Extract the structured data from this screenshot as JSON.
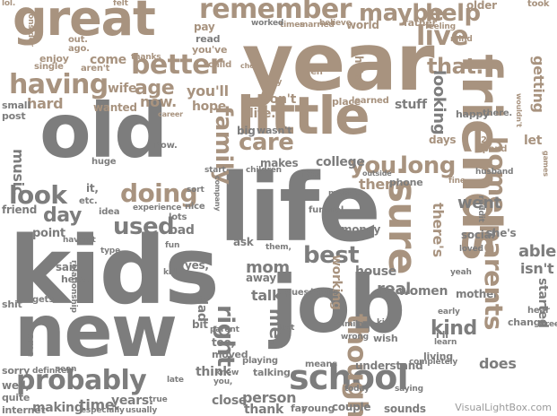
{
  "words": {
    "great": "great",
    "year": "year",
    "old": "old",
    "life": "life",
    "kids": "kids",
    "new": "new",
    "job": "job",
    "little": "little",
    "friends": "friends",
    "remember": "remember",
    "maybe": "maybe",
    "help": "help",
    "live": "live",
    "better": "better",
    "having": "having",
    "age": "age",
    "family": "family",
    "doing": "doing",
    "look": "look",
    "day": "day",
    "used": "used",
    "school": "school",
    "probably": "probably",
    "sure": "sure",
    "best": "best",
    "parents": "parents",
    "right": "right",
    "care": "care",
    "you": "you.",
    "long": "long",
    "music": "music",
    "home": "home",
    "went": "went",
    "that": "that.",
    "getting": "getting",
    "looking": "looking",
    "thought": "thought",
    "kind": "kind",
    "trying": "trying",
    "time": "time.",
    "making": "making",
    "person": "person",
    "thank": "thank",
    "college": "college",
    "think": "think",
    "mom": "mom",
    "me": "me.",
    "working": "working",
    "does": "does",
    "real": "real",
    "women": "women",
    "mother": "mother",
    "sounds": "sounds",
    "understand": "understand",
    "wife": "wife",
    "stuff": "stuff",
    "pay": "pay",
    "read": "read",
    "wont": "won't",
    "hope": "hope",
    "youll": "you'll",
    "youve": "you've",
    "wanted": "wanted",
    "hard": "hard",
    "enjoy": "enjoy",
    "come": "come",
    "small": "small",
    "post": "post",
    "friend": "friend",
    "point": "point",
    "bad": "bad",
    "sorry": "sorry",
    "quite": "quite",
    "well": "well,",
    "internet": "internet",
    "came": "came",
    "dad": "dad",
    "years": "years.",
    "usually": "usually",
    "too": "too,",
    "tell": "tell",
    "away": "away",
    "talk": "talk",
    "hours": "hours",
    "means": "means",
    "couple": "couple",
    "young": "young",
    "far": "far",
    "house": "house",
    "started": "started",
    "able": "able",
    "isnt": "isn't",
    "social": "social",
    "shes": "she's",
    "theres": "there's",
    "them": "them.",
    "phone": "phone",
    "let": "let",
    "days": "days",
    "happy": "happy",
    "there": "there.",
    "older": "older",
    "took": "took",
    "father": "father",
    "world": "world",
    "place": "place",
    "learned": "learned",
    "married": "married",
    "believe": "believe",
    "times": "times",
    "worked": "worked",
    "big": "big",
    "wasnt": "wasn't",
    "makes": "makes",
    "high": "high",
    "ask": "ask",
    "idea": "idea",
    "nice": "nice",
    "funeral": "funeral",
    "month": "months",
    "money": "money",
    "id": "i'd",
    "ill": "i'll",
    "living": "living",
    "early": "early",
    "learn": "learn",
    "change": "change",
    "free": "free",
    "hear": "hear",
    "husband": "husband",
    "guess": "guess",
    "similar": "similar",
    "wish": "wish",
    "kids2": "kids.",
    "said": "said",
    "here": "here.",
    "gets": "gets",
    "shit": "shit",
    "talking": "talking",
    "playing": "playing",
    "moved": "moved",
    "close": "close",
    "child": "child",
    "men": "men",
    "guy": "guy",
    "hes": "he's",
    "thanks": "thanks",
    "single": "single",
    "arent": "aren't",
    "out": "out.",
    "ago": "ago.",
    "yes": "yes,",
    "etc": "etc.",
    "it": "it,",
    "huge": "huge",
    "bit": "bit",
    "parent": "parent",
    "lots": "lots",
    "reddit": "reddit",
    "completely": "completely",
    "especially": "especially",
    "definitely": "definitely",
    "seen": "seen",
    "fun": "fun",
    "type": "type",
    "havent": "haven't",
    "now": "now.",
    "them2": "them,",
    "life2": "life.",
    "spend": "spend",
    "two": "2",
    "felt": "felt",
    "lol": "lol.",
    "consider": "consider",
    "feeling": "feeling",
    "mind": "mind",
    "kid": "kid",
    "start": "start",
    "children": "children",
    "sort": "sort",
    "company": "company",
    "outside": "outside",
    "fact": "fact",
    "experience": "experience",
    "relationship": "relationship",
    "wrong": "wrong",
    "true": "true",
    "career": "career",
    "check": "check",
    "late": "late",
    "lost": "lost",
    "loved": "loved",
    "knew": "knew",
    "yeah": "yeah",
    "you2": "you,",
    "today": "today",
    "fine": "fine",
    "games": "games",
    "wouldnt": "wouldn't",
    "getting2": "getting",
    "saying": "saying"
  },
  "watermark": "VisualLightBox.com",
  "colors": {
    "tan": "#a8937f",
    "grey": "#7d7d7d",
    "background": "#ffffff"
  }
}
